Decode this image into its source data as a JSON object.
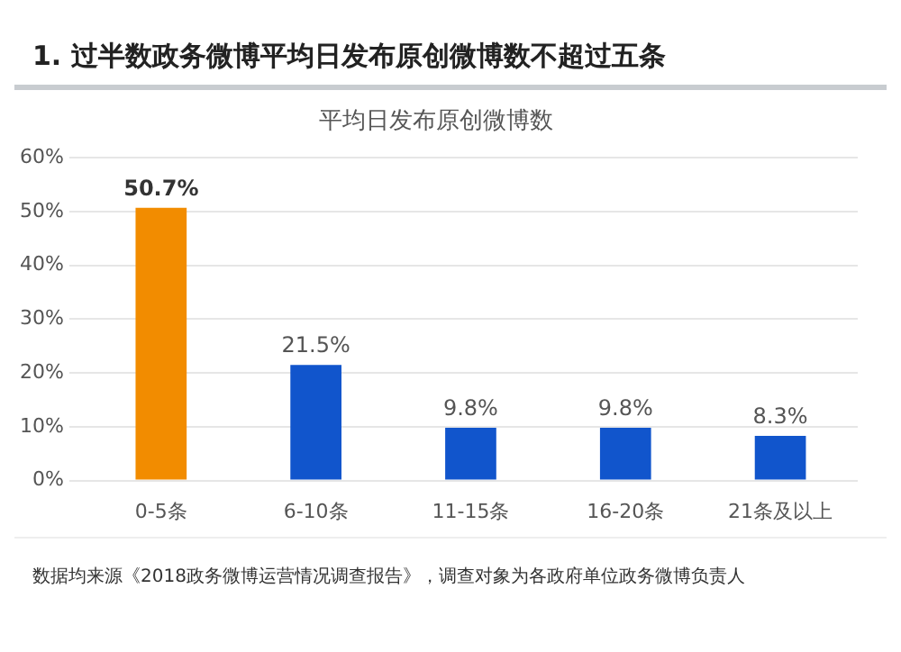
{
  "chart_data": {
    "type": "bar",
    "title": "1. 过半数政务微博平均日发布原创微博数不超过五条",
    "subtitle": "平均日发布原创微博数",
    "categories": [
      "0-5条",
      "6-10条",
      "11-15条",
      "16-20条",
      "21条及以上"
    ],
    "values": [
      50.7,
      21.5,
      9.8,
      9.8,
      8.3
    ],
    "colors": [
      "#f28c00",
      "#1155cc",
      "#1155cc",
      "#1155cc",
      "#1155cc"
    ],
    "value_labels": [
      "50.7%",
      "21.5%",
      "9.8%",
      "9.8%",
      "8.3%"
    ],
    "ylim": [
      0,
      60
    ],
    "yticks": [
      {
        "value": 0,
        "label": "0%"
      },
      {
        "value": 10,
        "label": "10%"
      },
      {
        "value": 20,
        "label": "20%"
      },
      {
        "value": 30,
        "label": "30%"
      },
      {
        "value": 40,
        "label": "40%"
      },
      {
        "value": 50,
        "label": "50%"
      },
      {
        "value": 60,
        "label": "60%"
      }
    ],
    "grid": "y",
    "legend": false,
    "annotations": [
      "数据均来源《2018政务微博运营情况调查报告》，调查对象为各政府单位政务微博负责人"
    ]
  }
}
